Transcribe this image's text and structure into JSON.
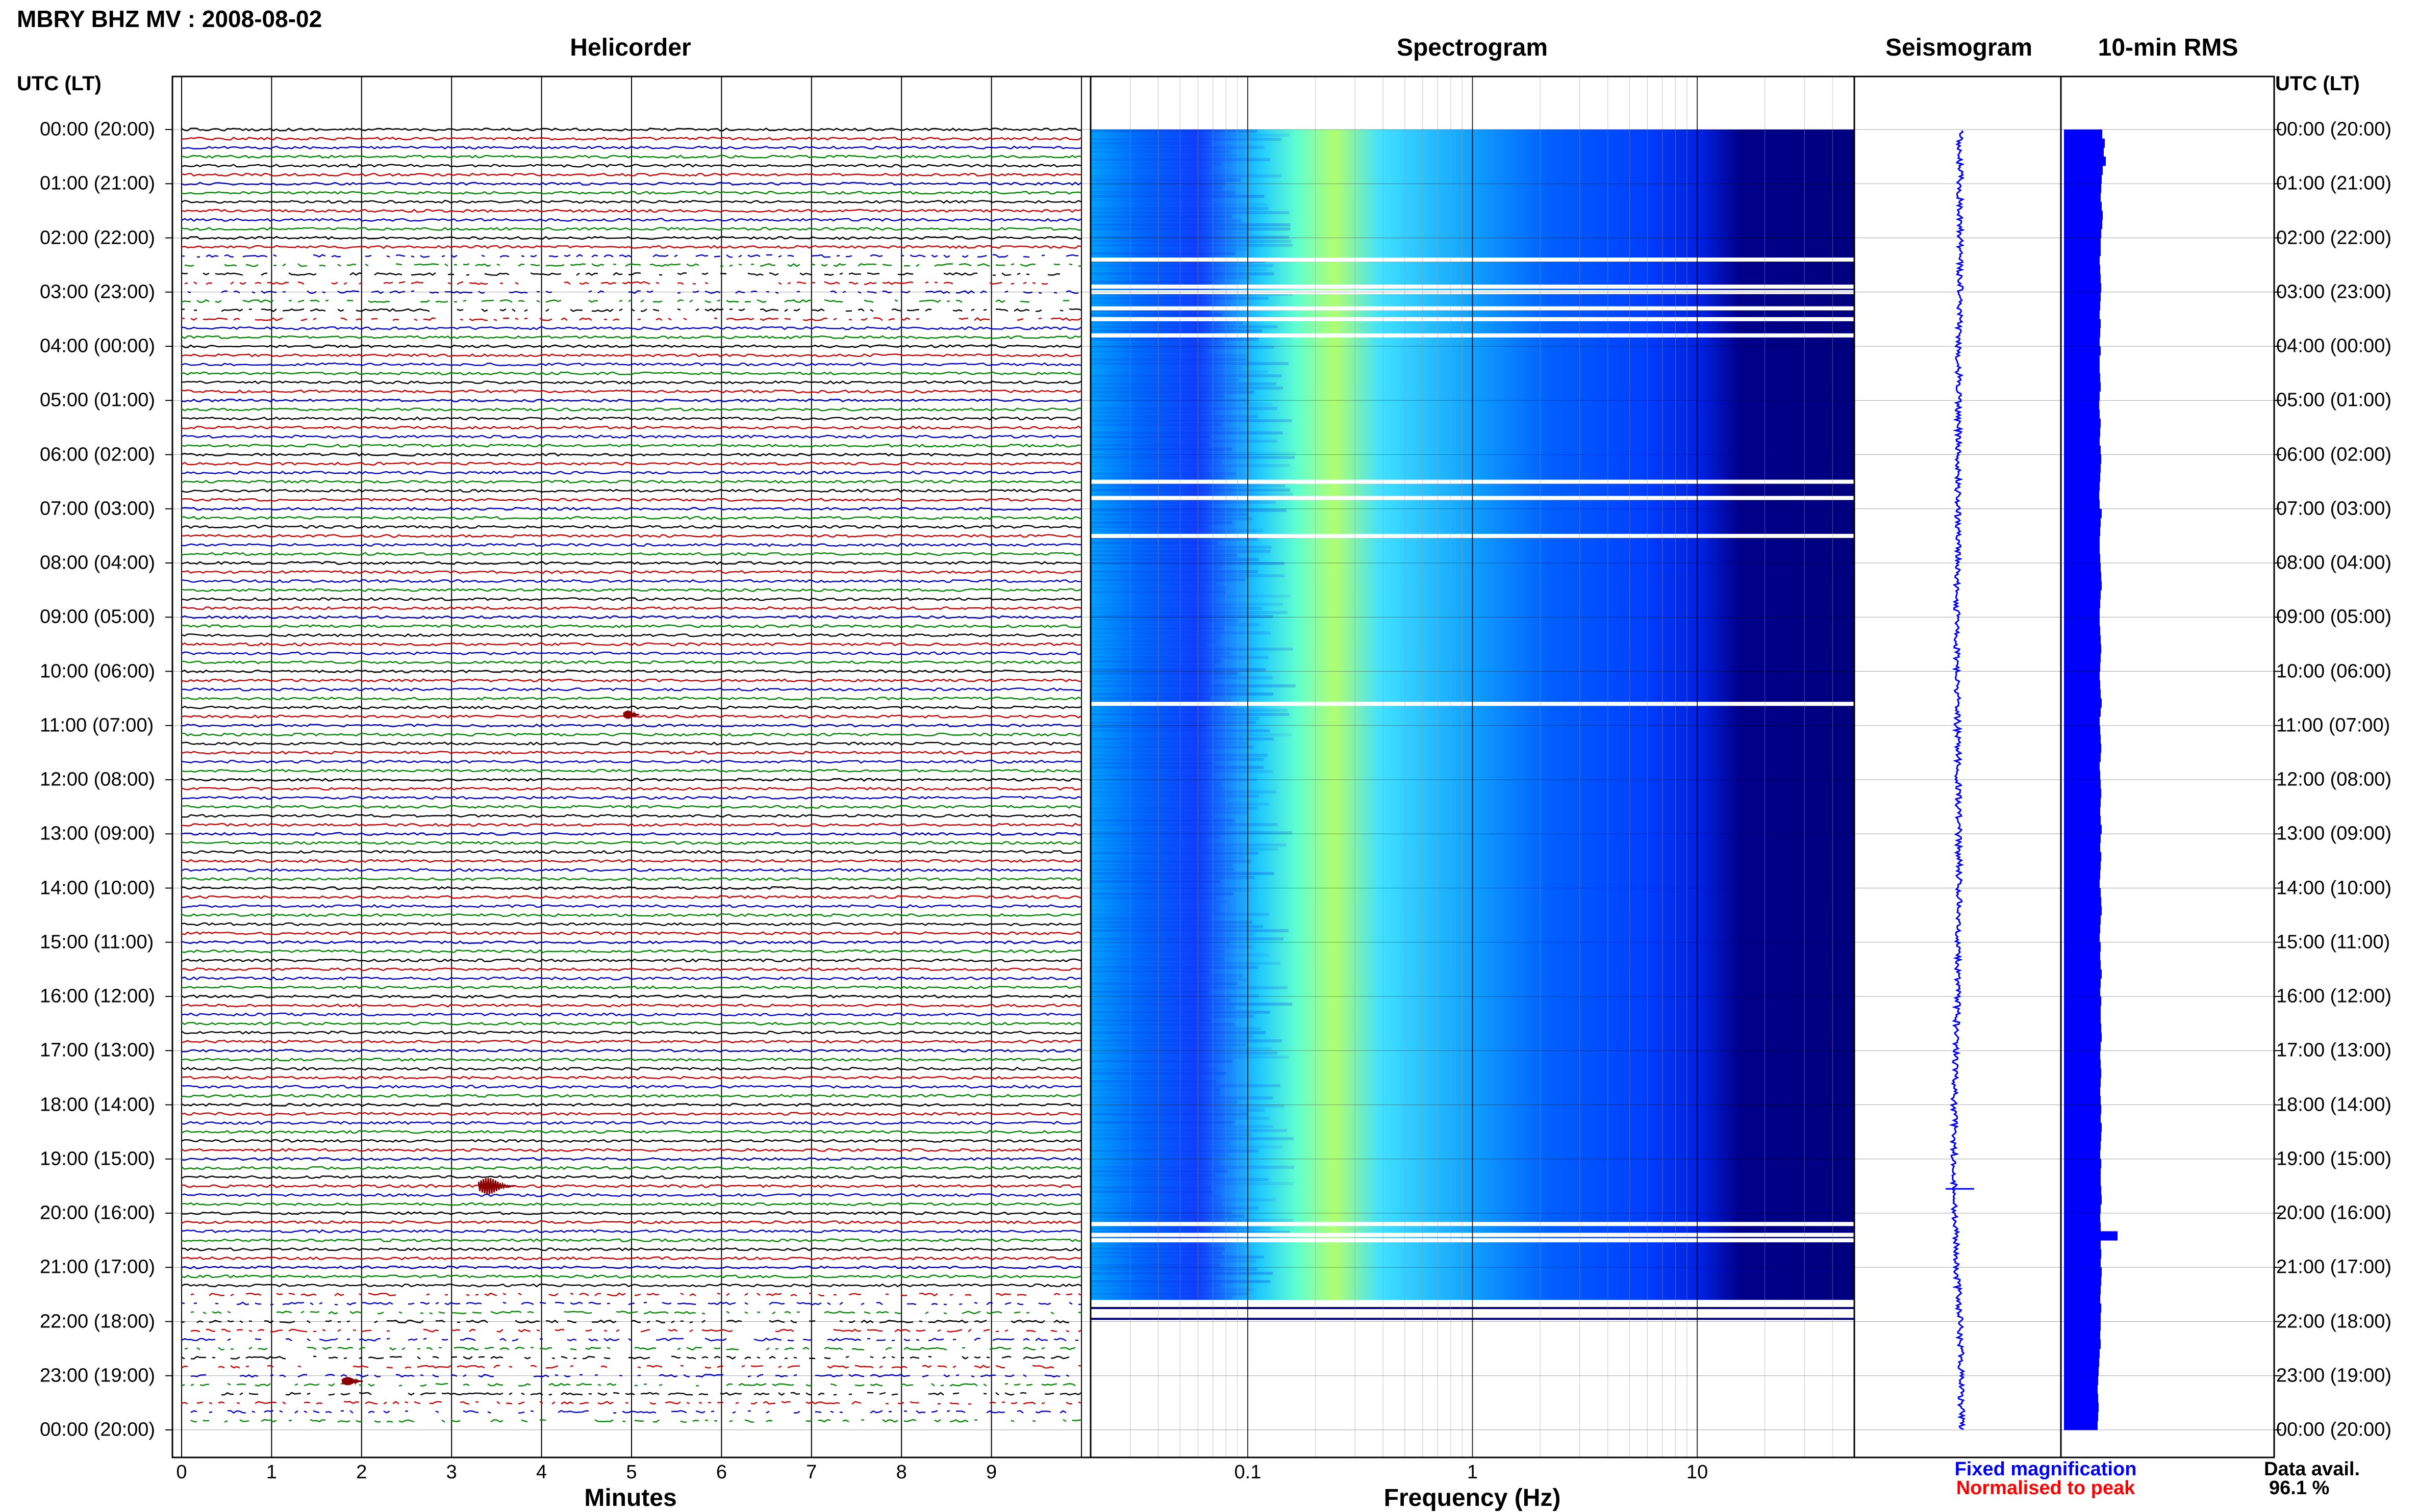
{
  "header": {
    "title": "MBRY BHZ MV : 2008-08-02"
  },
  "panels": {
    "helicorder": "Helicorder",
    "spectrogram": "Spectrogram",
    "seismogram": "Seismogram",
    "rms": "10-min RMS"
  },
  "axis_left_header": "UTC (LT)",
  "axis_right_header": "UTC (LT)",
  "time_labels": [
    "00:00 (20:00)",
    "01:00 (21:00)",
    "02:00 (22:00)",
    "03:00 (23:00)",
    "04:00 (00:00)",
    "05:00 (01:00)",
    "06:00 (02:00)",
    "07:00 (03:00)",
    "08:00 (04:00)",
    "09:00 (05:00)",
    "10:00 (06:00)",
    "11:00 (07:00)",
    "12:00 (08:00)",
    "13:00 (09:00)",
    "14:00 (10:00)",
    "15:00 (11:00)",
    "16:00 (12:00)",
    "17:00 (13:00)",
    "18:00 (14:00)",
    "19:00 (15:00)",
    "20:00 (16:00)",
    "21:00 (17:00)",
    "22:00 (18:00)",
    "23:00 (19:00)",
    "00:00 (20:00)"
  ],
  "legend": {
    "fixed": "Fixed magnification",
    "fixed_color": "#0000ff",
    "normalised": "Normalised to peak",
    "normalised_color": "#ff0000"
  },
  "data_availability": {
    "label": "Data avail.",
    "value": "96.1 %"
  },
  "chart_data": [
    {
      "type": "line",
      "name": "helicorder",
      "xlabel": "Minutes",
      "x_ticks": [
        "0",
        "1",
        "2",
        "3",
        "4",
        "5",
        "6",
        "7",
        "8",
        "9"
      ],
      "xlim": [
        0,
        10
      ],
      "ylim_hours": [
        0,
        24
      ],
      "traces": 144,
      "trace_colors": [
        "#000000",
        "#cc0000",
        "#0000cc",
        "#008800"
      ],
      "gaps_hours": [
        [
          2.2,
          3.6
        ],
        [
          21.4,
          24.0
        ]
      ],
      "events": [
        {
          "hour": 19.5,
          "minute": 3.5,
          "amplitude": "large"
        },
        {
          "hour": 23.1,
          "minute": 1.9,
          "amplitude": "medium"
        },
        {
          "hour": 10.8,
          "minute": 5.0,
          "amplitude": "small"
        }
      ]
    },
    {
      "type": "heatmap",
      "name": "spectrogram",
      "xlabel": "Frequency (Hz)",
      "x_scale": "log",
      "x_ticks": [
        "0.1",
        "1",
        "10"
      ],
      "xlim": [
        0.02,
        50
      ],
      "ylim_hours": [
        0,
        24
      ],
      "data_end_hour": 21.6,
      "colormap": [
        "#00007f",
        "#0000ff",
        "#0080ff",
        "#00c0ff",
        "#40ffc0",
        "#c0ff40"
      ],
      "peak_band_hz": [
        0.2,
        0.5
      ],
      "gap_rows_hours": [
        2.4,
        2.9,
        3.0,
        3.3,
        3.5,
        3.8,
        6.5,
        6.8,
        7.5,
        10.6,
        20.2,
        20.4,
        20.5,
        21.7,
        21.9
      ]
    },
    {
      "type": "line",
      "name": "seismogram",
      "ylim_hours": [
        0,
        24
      ],
      "color": "#0000ff",
      "x_offsets": [
        0.0,
        0.0,
        0.0,
        0.0,
        -0.02,
        -0.02,
        -0.03,
        -0.03,
        -0.04,
        -0.05,
        -0.05,
        -0.04,
        -0.03,
        -0.02,
        -0.01,
        -0.02,
        -0.04,
        -0.07,
        -0.09,
        -0.1,
        -0.08,
        -0.05,
        0.0,
        0.02,
        0.03
      ]
    },
    {
      "type": "bar",
      "name": "rms",
      "orientation": "horizontal",
      "ylim_hours": [
        0,
        24
      ],
      "color": "#0000ff",
      "bins": 144,
      "values_relative": [
        0.75,
        0.8,
        0.78,
        0.82,
        0.76,
        0.74,
        0.73,
        0.72,
        0.74,
        0.76,
        0.75,
        0.73,
        0.72,
        0.72,
        0.7,
        0.71,
        0.72,
        0.73,
        0.72,
        0.71,
        0.7,
        0.72,
        0.71,
        0.7,
        0.72,
        0.7,
        0.7,
        0.71,
        0.72,
        0.7,
        0.69,
        0.7,
        0.72,
        0.71,
        0.7,
        0.72,
        0.73,
        0.72,
        0.71,
        0.7,
        0.69,
        0.7,
        0.74,
        0.72,
        0.71,
        0.7,
        0.7,
        0.71,
        0.72,
        0.73,
        0.74,
        0.72,
        0.71,
        0.7,
        0.7,
        0.71,
        0.72,
        0.73,
        0.72,
        0.71,
        0.7,
        0.71,
        0.72,
        0.74,
        0.72,
        0.7,
        0.71,
        0.72,
        0.73,
        0.72,
        0.7,
        0.71,
        0.72,
        0.73,
        0.72,
        0.71,
        0.72,
        0.74,
        0.72,
        0.71,
        0.73,
        0.72,
        0.71,
        0.7,
        0.72,
        0.73,
        0.74,
        0.72,
        0.71,
        0.7,
        0.72,
        0.71,
        0.72,
        0.74,
        0.72,
        0.71,
        0.73,
        0.72,
        0.72,
        0.73,
        0.74,
        0.72,
        0.71,
        0.72,
        0.73,
        0.72,
        0.71,
        0.72,
        0.73,
        0.72,
        0.74,
        0.73,
        0.72,
        0.71,
        0.73,
        0.72,
        0.72,
        0.73,
        0.74,
        0.72,
        0.71,
        0.72,
        1.05,
        0.72,
        0.73,
        0.72,
        0.74,
        0.73,
        0.72,
        0.71,
        0.73,
        0.72,
        0.72,
        0.71,
        0.72,
        0.7,
        0.69,
        0.68,
        0.67,
        0.66,
        0.67,
        0.68,
        0.67,
        0.66
      ]
    }
  ]
}
